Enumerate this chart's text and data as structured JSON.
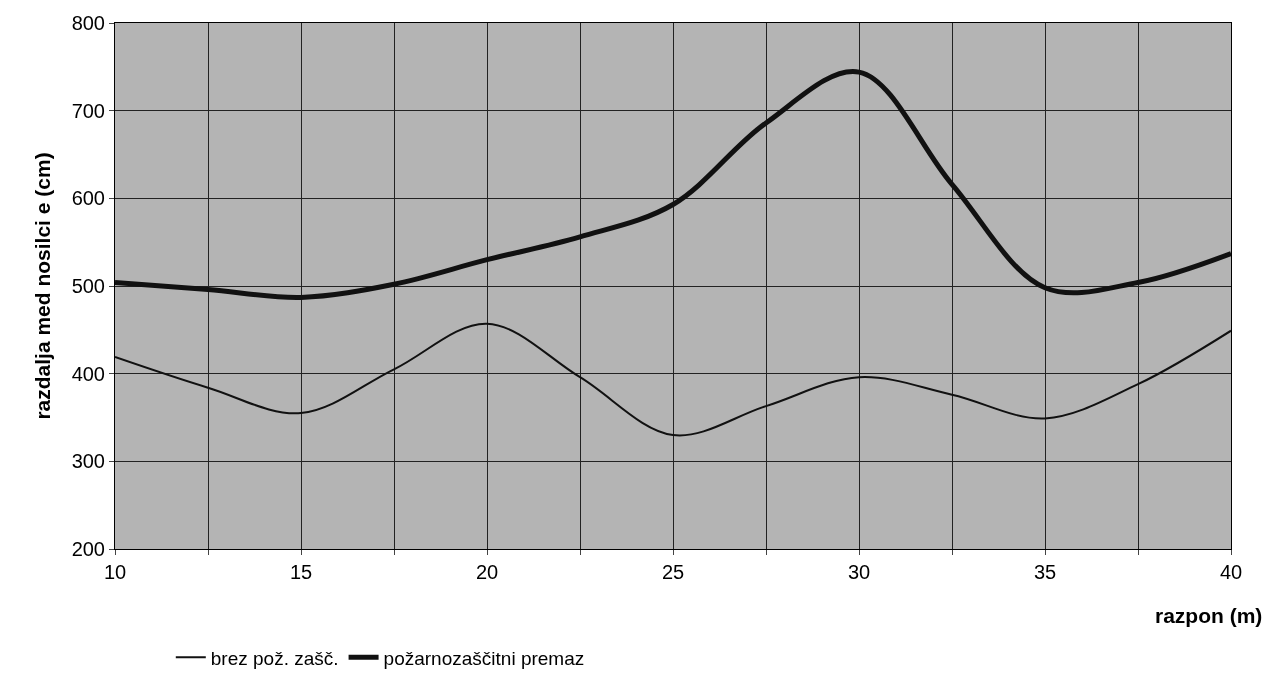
{
  "chart_data": {
    "type": "line",
    "xlabel": "razpon (m)",
    "ylabel": "razdalja med nosilci e (cm)",
    "x": [
      10,
      12.5,
      15,
      17.5,
      20,
      22.5,
      25,
      27.5,
      30,
      32.5,
      35,
      37.5,
      40
    ],
    "series": [
      {
        "name": "brez pož. zašč.",
        "color": "#111111",
        "values": [
          419,
          384,
          355,
          405,
          457,
          396,
          330,
          363,
          396,
          376,
          349,
          388,
          449
        ]
      },
      {
        "name": "požarnozaščitni premaz",
        "color": "#111111",
        "values": [
          504,
          496,
          487,
          502,
          530,
          556,
          593,
          686,
          744,
          616,
          498,
          504,
          537
        ]
      }
    ],
    "xlim": [
      10,
      40
    ],
    "ylim": [
      200,
      800
    ],
    "xticks": [
      10,
      {
        "value": 12.5,
        "label": null
      },
      15,
      {
        "value": 17.5,
        "label": null
      },
      20,
      {
        "value": 22.5,
        "label": null
      },
      25,
      {
        "value": 27.5,
        "label": null
      },
      30,
      {
        "value": 32.5,
        "label": null
      },
      35,
      {
        "value": 37.5,
        "label": null
      },
      40
    ],
    "yticks": [
      200,
      300,
      400,
      500,
      600,
      700,
      800
    ],
    "grid": true,
    "legend": "bottom",
    "line_style": "solid",
    "marker": "none"
  }
}
